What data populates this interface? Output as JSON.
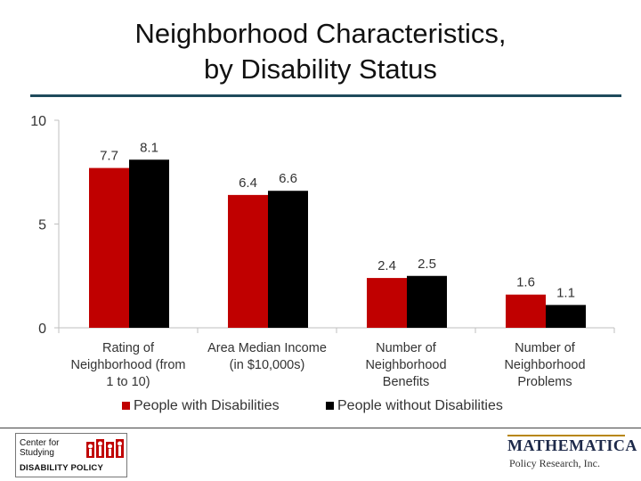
{
  "title": {
    "line1": "Neighborhood Characteristics,",
    "line2": "by Disability Status"
  },
  "chart_data": {
    "type": "bar",
    "title": "Neighborhood Characteristics, by Disability Status",
    "categories": [
      [
        "Rating of",
        "Neighborhood (from",
        "1 to 10)"
      ],
      [
        "Area Median Income",
        "(in $10,000s)"
      ],
      [
        "Number of",
        "Neighborhood",
        "Benefits"
      ],
      [
        "Number of",
        "Neighborhood",
        "Problems"
      ]
    ],
    "series": [
      {
        "name": "People with Disabilities",
        "color": "#c00000",
        "values": [
          7.7,
          6.4,
          2.4,
          1.6
        ]
      },
      {
        "name": "People without Disabilities",
        "color": "#000000",
        "values": [
          8.1,
          6.6,
          2.5,
          1.1
        ]
      }
    ],
    "yticks": [
      "0",
      "5",
      "10"
    ],
    "ylim": [
      0,
      10
    ],
    "xlabel": "",
    "ylabel": "",
    "legend_position": "bottom",
    "grid": false
  },
  "footer": {
    "left_logo": {
      "line1": "Center for",
      "line2": "Studying",
      "line3": "DISABILITY POLICY"
    },
    "right_logo": {
      "brand": "MATHEMATICA",
      "sub": "Policy Research, Inc."
    }
  }
}
